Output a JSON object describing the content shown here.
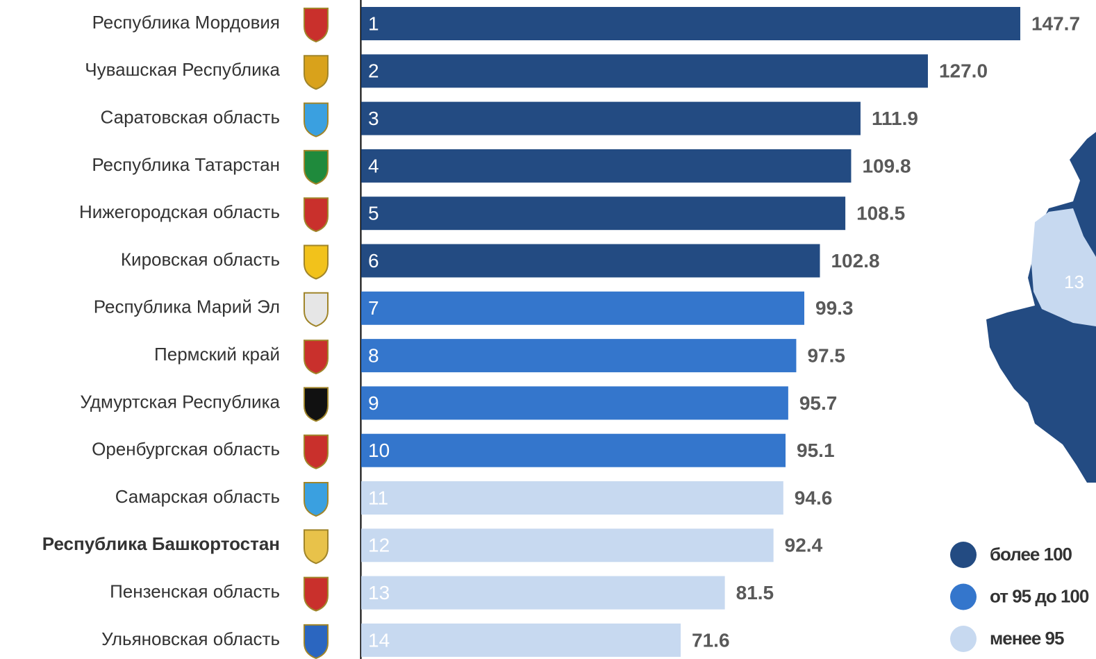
{
  "chart_data": {
    "type": "bar",
    "orientation": "horizontal",
    "categories": [
      "Республика Мордовия",
      "Чувашская Республика",
      "Саратовская область",
      "Республика Татарстан",
      "Нижегородская область",
      "Кировская область",
      "Республика Марий Эл",
      "Пермский край",
      "Удмуртская Республика",
      "Оренбургская область",
      "Самарская область",
      "Республика Башкортостан",
      "Пензенская область",
      "Ульяновская область"
    ],
    "ranks": [
      1,
      2,
      3,
      4,
      5,
      6,
      7,
      8,
      9,
      10,
      11,
      12,
      13,
      14
    ],
    "values": [
      147.7,
      127.0,
      111.9,
      109.8,
      108.5,
      102.8,
      99.3,
      97.5,
      95.7,
      95.1,
      94.6,
      92.4,
      81.5,
      71.6
    ],
    "value_labels": [
      "147.7",
      "127.0",
      "111.9",
      "109.8",
      "108.5",
      "102.8",
      "99.3",
      "97.5",
      "95.7",
      "95.1",
      "94.6",
      "92.4",
      "81.5",
      "71.6"
    ],
    "bar_colors": [
      "#234b82",
      "#234b82",
      "#234b82",
      "#234b82",
      "#234b82",
      "#234b82",
      "#3476cc",
      "#3476cc",
      "#3476cc",
      "#3476cc",
      "#c7d9f0",
      "#c7d9f0",
      "#c7d9f0",
      "#c7d9f0"
    ],
    "bold_category": 11,
    "legend": [
      {
        "label": "более 100",
        "color": "#234b82"
      },
      {
        "label": "от 95 до 100",
        "color": "#3476cc"
      },
      {
        "label": "менее 95",
        "color": "#c7d9f0"
      }
    ],
    "map_label": "13"
  }
}
